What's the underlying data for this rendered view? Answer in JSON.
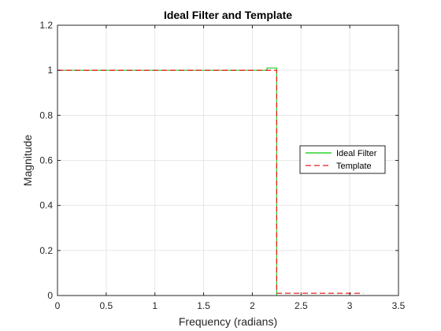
{
  "chart_data": {
    "type": "line",
    "title": "Ideal Filter and Template",
    "xlabel": "Frequency (radians)",
    "ylabel": "Magnitude",
    "xlim": [
      0,
      3.5
    ],
    "ylim": [
      0,
      1.2
    ],
    "x_ticks": [
      0,
      0.5,
      1,
      1.5,
      2,
      2.5,
      3,
      3.5
    ],
    "x_tick_labels": [
      "0",
      "0.5",
      "1",
      "1.5",
      "2",
      "2.5",
      "3",
      "3.5"
    ],
    "y_ticks": [
      0,
      0.2,
      0.4,
      0.6,
      0.8,
      1,
      1.2
    ],
    "y_tick_labels": [
      "0",
      "0.2",
      "0.4",
      "0.6",
      "0.8",
      "1",
      "1.2"
    ],
    "grid": true,
    "legend_position": "right",
    "series": [
      {
        "name": "Ideal Filter",
        "color": "#00cc00",
        "style": "solid",
        "x": [
          0,
          2.15,
          2.15,
          2.25,
          2.25,
          3.14
        ],
        "y": [
          1,
          1,
          1.01,
          1.01,
          0,
          0
        ]
      },
      {
        "name": "Template",
        "color": "#e02020",
        "style": "dashed",
        "x": [
          0,
          2.25,
          2.25,
          3.14
        ],
        "y": [
          1,
          1,
          0.01,
          0.01
        ]
      }
    ]
  }
}
